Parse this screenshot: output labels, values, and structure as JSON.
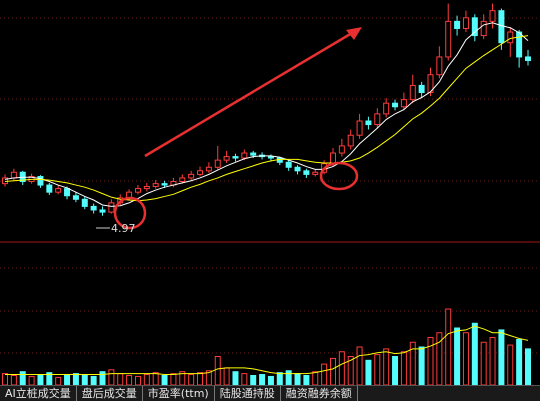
{
  "chart_data": {
    "type": "candlestick",
    "open": [
      5.42,
      5.5,
      5.58,
      5.45,
      5.52,
      5.4,
      5.3,
      5.35,
      5.25,
      5.2,
      5.1,
      5.05,
      5.02,
      5.15,
      5.22,
      5.3,
      5.35,
      5.38,
      5.42,
      5.4,
      5.45,
      5.5,
      5.55,
      5.6,
      5.65,
      5.75,
      5.8,
      5.78,
      5.85,
      5.82,
      5.8,
      5.78,
      5.72,
      5.65,
      5.6,
      5.55,
      5.58,
      5.7,
      5.85,
      5.95,
      6.1,
      6.3,
      6.25,
      6.4,
      6.55,
      6.5,
      6.6,
      6.8,
      6.7,
      6.95,
      7.2,
      7.7,
      7.6,
      7.75,
      7.5,
      7.7,
      7.85,
      7.4,
      7.55,
      7.2
    ],
    "high": [
      5.55,
      5.63,
      5.6,
      5.56,
      5.54,
      5.43,
      5.4,
      5.38,
      5.3,
      5.24,
      5.14,
      5.1,
      5.2,
      5.27,
      5.34,
      5.4,
      5.43,
      5.47,
      5.46,
      5.5,
      5.55,
      5.6,
      5.66,
      5.72,
      5.95,
      5.88,
      5.84,
      5.9,
      5.88,
      5.86,
      5.83,
      5.8,
      5.75,
      5.68,
      5.63,
      5.62,
      5.75,
      5.92,
      6.05,
      6.18,
      6.4,
      6.36,
      6.48,
      6.62,
      6.6,
      6.7,
      6.95,
      6.85,
      7.05,
      7.35,
      7.95,
      7.78,
      7.85,
      7.8,
      7.8,
      7.95,
      7.88,
      7.62,
      7.58,
      7.3
    ],
    "low": [
      5.38,
      5.46,
      5.4,
      5.42,
      5.36,
      5.26,
      5.27,
      5.2,
      5.16,
      5.06,
      5.0,
      4.97,
      5.0,
      5.12,
      5.18,
      5.27,
      5.31,
      5.35,
      5.36,
      5.37,
      5.42,
      5.47,
      5.52,
      5.57,
      5.62,
      5.71,
      5.73,
      5.75,
      5.78,
      5.76,
      5.73,
      5.68,
      5.6,
      5.55,
      5.5,
      5.52,
      5.55,
      5.66,
      5.8,
      5.9,
      6.05,
      6.18,
      6.2,
      6.35,
      6.45,
      6.45,
      6.55,
      6.62,
      6.65,
      6.9,
      7.15,
      7.5,
      7.55,
      7.42,
      7.45,
      7.6,
      7.3,
      7.2,
      7.05,
      7.08
    ],
    "close": [
      5.5,
      5.58,
      5.45,
      5.52,
      5.4,
      5.3,
      5.35,
      5.25,
      5.2,
      5.1,
      5.05,
      5.02,
      5.15,
      5.22,
      5.3,
      5.35,
      5.38,
      5.42,
      5.4,
      5.45,
      5.5,
      5.55,
      5.6,
      5.65,
      5.75,
      5.8,
      5.78,
      5.85,
      5.82,
      5.8,
      5.78,
      5.72,
      5.65,
      5.6,
      5.55,
      5.58,
      5.7,
      5.85,
      5.95,
      6.1,
      6.3,
      6.25,
      6.4,
      6.55,
      6.5,
      6.6,
      6.8,
      6.7,
      6.95,
      7.2,
      7.7,
      7.6,
      7.75,
      7.5,
      7.7,
      7.85,
      7.4,
      7.55,
      7.2,
      7.15
    ],
    "up_color": "#ff3c3c",
    "down_color": "#54fcfc",
    "ylim": [
      4.6,
      8.0
    ],
    "series": [
      {
        "color": "#ffffff",
        "values": [
          5.48,
          5.5,
          5.51,
          5.51,
          5.49,
          5.45,
          5.4,
          5.36,
          5.3,
          5.24,
          5.19,
          5.12,
          5.1,
          5.11,
          5.15,
          5.21,
          5.28,
          5.33,
          5.37,
          5.4,
          5.43,
          5.46,
          5.5,
          5.55,
          5.61,
          5.67,
          5.72,
          5.77,
          5.8,
          5.81,
          5.81,
          5.79,
          5.75,
          5.71,
          5.66,
          5.62,
          5.62,
          5.66,
          5.73,
          5.84,
          5.98,
          6.09,
          6.2,
          6.32,
          6.4,
          6.46,
          6.57,
          6.63,
          6.71,
          6.85,
          7.07,
          7.23,
          7.44,
          7.55,
          7.65,
          7.68,
          7.64,
          7.61,
          7.54,
          7.43
        ]
      },
      {
        "color": "#ffff00",
        "values": [
          5.45,
          5.46,
          5.47,
          5.48,
          5.48,
          5.47,
          5.45,
          5.43,
          5.4,
          5.37,
          5.33,
          5.28,
          5.23,
          5.2,
          5.19,
          5.18,
          5.19,
          5.21,
          5.24,
          5.27,
          5.32,
          5.37,
          5.41,
          5.46,
          5.5,
          5.55,
          5.59,
          5.63,
          5.67,
          5.71,
          5.74,
          5.76,
          5.76,
          5.76,
          5.74,
          5.72,
          5.71,
          5.71,
          5.72,
          5.74,
          5.78,
          5.85,
          5.93,
          6.02,
          6.11,
          6.22,
          6.33,
          6.41,
          6.51,
          6.62,
          6.76,
          6.9,
          7.04,
          7.13,
          7.22,
          7.3,
          7.38,
          7.46,
          7.48,
          7.5
        ]
      }
    ],
    "annotations": [
      "4.97"
    ],
    "volume": {
      "ylim": [
        0,
        100
      ],
      "values": [
        12,
        10,
        14,
        9,
        11,
        13,
        8,
        10,
        12,
        11,
        9,
        14,
        16,
        12,
        10,
        9,
        11,
        13,
        10,
        12,
        14,
        11,
        13,
        15,
        30,
        18,
        14,
        12,
        10,
        11,
        9,
        13,
        15,
        12,
        10,
        14,
        22,
        28,
        35,
        30,
        40,
        26,
        32,
        38,
        30,
        35,
        45,
        40,
        50,
        55,
        80,
        60,
        55,
        65,
        45,
        50,
        58,
        42,
        48,
        38
      ],
      "ma_color": "#ffff00",
      "ma": [
        11,
        11,
        11,
        11,
        11,
        11,
        11,
        11,
        11,
        11,
        11,
        11,
        12,
        12,
        12,
        12,
        12,
        12,
        11,
        11,
        12,
        12,
        12,
        13,
        17,
        18,
        18,
        18,
        17,
        15,
        13,
        12,
        12,
        12,
        12,
        13,
        15,
        17,
        22,
        26,
        31,
        32,
        34,
        35,
        33,
        34,
        38,
        38,
        41,
        45,
        54,
        57,
        58,
        62,
        59,
        55,
        55,
        52,
        49,
        47
      ]
    }
  },
  "tabs": [
    "AI立桩成交量",
    "盘后成交量",
    "市盈率(ttm)",
    "陆股通持股",
    "融资融券余额"
  ]
}
